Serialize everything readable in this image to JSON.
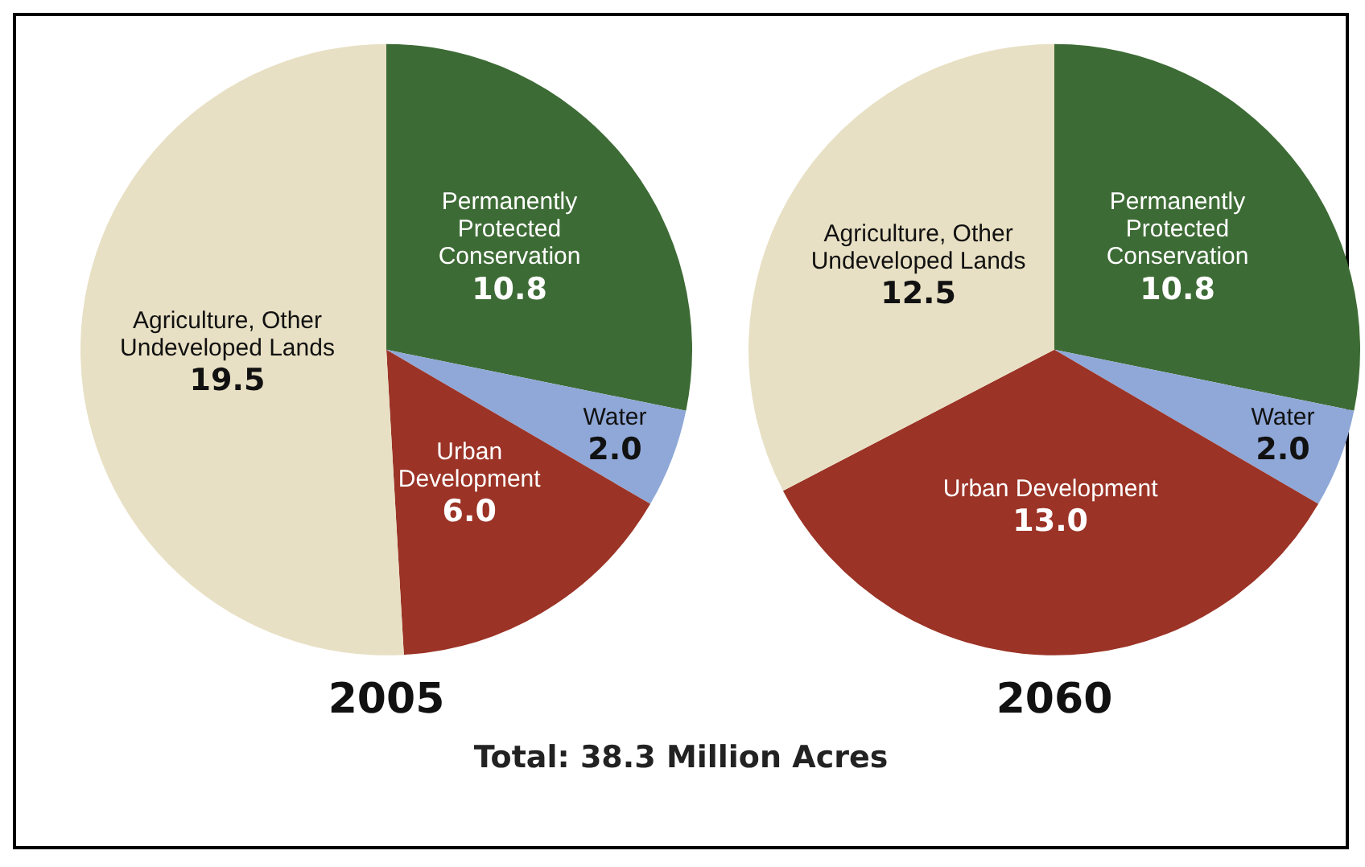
{
  "chart_data": [
    {
      "type": "pie",
      "title": "2005",
      "categories": [
        "Permanently Protected Conservation",
        "Water",
        "Urban Development",
        "Agriculture, Other Undeveloped Lands"
      ],
      "values": [
        10.8,
        2.0,
        6.0,
        19.5
      ],
      "value_labels": [
        "10.8",
        "2.0",
        "6.0",
        "19.5"
      ],
      "colors": [
        "#3d6b35",
        "#8fa8d8",
        "#9b3326",
        "#e8e0c4"
      ],
      "legend": false
    },
    {
      "type": "pie",
      "title": "2060",
      "categories": [
        "Permanently Protected Conservation",
        "Water",
        "Urban Development",
        "Agriculture, Other Undeveloped Lands"
      ],
      "values": [
        10.8,
        2.0,
        13.0,
        12.5
      ],
      "value_labels": [
        "10.8",
        "2.0",
        "13.0",
        "12.5"
      ],
      "colors": [
        "#3d6b35",
        "#8fa8d8",
        "#9b3326",
        "#e8e0c4"
      ],
      "legend": false
    },
    {
      "type": "other",
      "title": "Total: 38.3 Million Acres"
    }
  ]
}
